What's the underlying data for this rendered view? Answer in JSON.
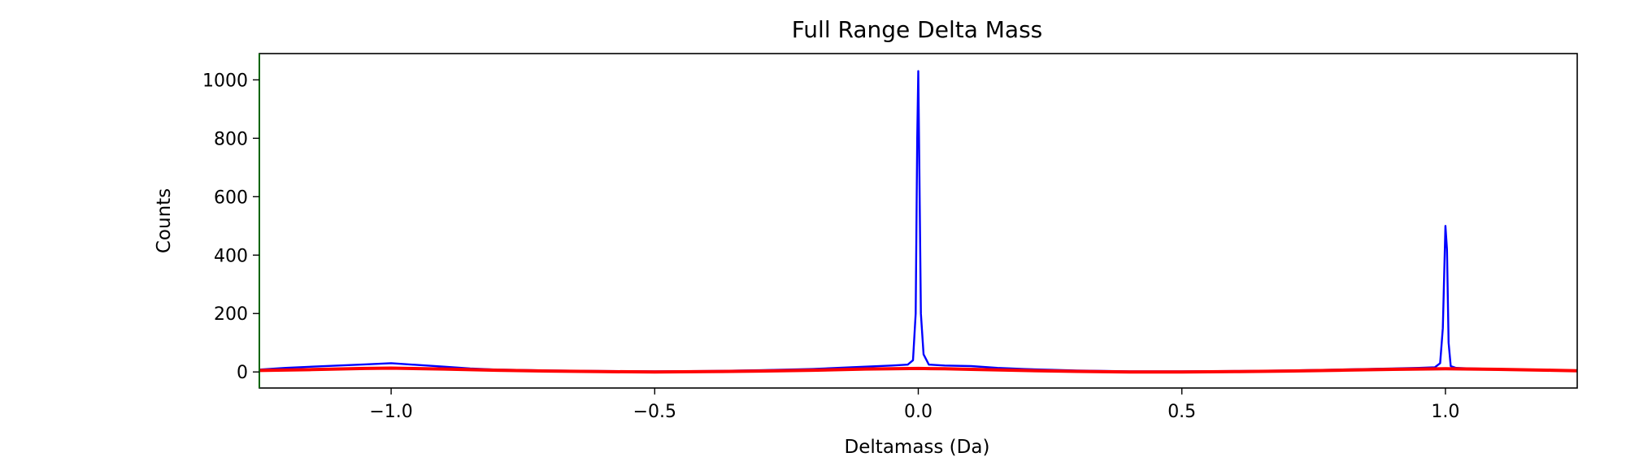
{
  "chart_data": {
    "type": "line",
    "title": "Full Range Delta Mass",
    "xlabel": "Deltamass (Da)",
    "ylabel": "Counts",
    "xlim": [
      -1.25,
      1.25
    ],
    "ylim": [
      -55,
      1090
    ],
    "xticks": [
      -1.0,
      -0.5,
      0.0,
      0.5,
      1.0
    ],
    "xtick_labels": [
      "−1.0",
      "−0.5",
      "0.0",
      "0.5",
      "1.0"
    ],
    "yticks": [
      0,
      200,
      400,
      600,
      800,
      1000
    ],
    "ytick_labels": [
      "0",
      "200",
      "400",
      "600",
      "800",
      "1000"
    ],
    "grid": false,
    "legend": "none",
    "series": [
      {
        "color": "#0000ff",
        "x": [
          -1.25,
          -1.2,
          -1.15,
          -1.1,
          -1.05,
          -1.0,
          -0.95,
          -0.9,
          -0.85,
          -0.8,
          -0.7,
          -0.6,
          -0.5,
          -0.4,
          -0.3,
          -0.2,
          -0.1,
          -0.05,
          -0.02,
          -0.01,
          -0.005,
          -0.002,
          0.0,
          0.002,
          0.005,
          0.01,
          0.02,
          0.05,
          0.1,
          0.15,
          0.2,
          0.3,
          0.4,
          0.5,
          0.6,
          0.7,
          0.8,
          0.9,
          0.95,
          0.98,
          0.99,
          0.995,
          1.0,
          1.003,
          1.006,
          1.01,
          1.02,
          1.05,
          1.1,
          1.15,
          1.2,
          1.25
        ],
        "y": [
          8,
          14,
          18,
          22,
          26,
          30,
          24,
          18,
          12,
          8,
          5,
          3,
          2,
          3,
          6,
          10,
          18,
          22,
          25,
          40,
          200,
          800,
          1030,
          700,
          200,
          60,
          25,
          22,
          20,
          14,
          10,
          5,
          2,
          2,
          3,
          5,
          8,
          12,
          14,
          16,
          30,
          150,
          500,
          420,
          100,
          20,
          14,
          12,
          10,
          8,
          6,
          5
        ]
      },
      {
        "color": "#ff0000",
        "x": [
          -1.25,
          -1.15,
          -1.05,
          -1.0,
          -0.9,
          -0.8,
          -0.7,
          -0.6,
          -0.5,
          -0.4,
          -0.3,
          -0.2,
          -0.1,
          -0.05,
          0.0,
          0.05,
          0.1,
          0.2,
          0.3,
          0.4,
          0.5,
          0.6,
          0.7,
          0.8,
          0.9,
          1.0,
          1.1,
          1.2,
          1.25
        ],
        "y": [
          5,
          8,
          12,
          13,
          10,
          6,
          3,
          1,
          0,
          1,
          3,
          6,
          10,
          11,
          12,
          11,
          9,
          5,
          2,
          0,
          0,
          1,
          3,
          6,
          9,
          11,
          9,
          6,
          4
        ]
      }
    ]
  }
}
